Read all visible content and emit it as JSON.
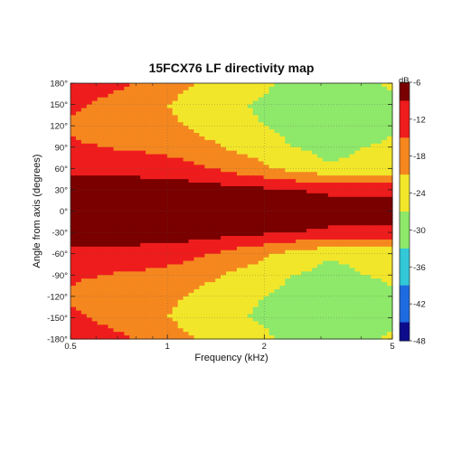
{
  "chart_data": {
    "type": "heatmap",
    "title": "15FCX76 LF directivity map",
    "xlabel": "Frequency (kHz)",
    "ylabel": "Angle from axis (degrees)",
    "x_scale": "log",
    "xlim": [
      0.5,
      5
    ],
    "ylim": [
      -180,
      180
    ],
    "x_ticks": [
      {
        "value": 0.5,
        "label": "0.5"
      },
      {
        "value": 1,
        "label": "1"
      },
      {
        "value": 2,
        "label": "2"
      },
      {
        "value": 5,
        "label": "5"
      }
    ],
    "y_ticks": [
      {
        "value": 180,
        "label": "180°"
      },
      {
        "value": 150,
        "label": "150°"
      },
      {
        "value": 120,
        "label": "120°"
      },
      {
        "value": 90,
        "label": "90°"
      },
      {
        "value": 60,
        "label": "60°"
      },
      {
        "value": 30,
        "label": "30°"
      },
      {
        "value": 0,
        "label": "0°"
      },
      {
        "value": -30,
        "label": "-30°"
      },
      {
        "value": -60,
        "label": "-60°"
      },
      {
        "value": -90,
        "label": "-90°"
      },
      {
        "value": -120,
        "label": "-120°"
      },
      {
        "value": -150,
        "label": "-150°"
      },
      {
        "value": -180,
        "label": "-180°"
      }
    ],
    "colorbar": {
      "unit": "dB",
      "range": [
        -48,
        -6
      ],
      "ticks": [
        {
          "value": -6,
          "label": "-6"
        },
        {
          "value": -12,
          "label": "-12"
        },
        {
          "value": -18,
          "label": "-18"
        },
        {
          "value": -24,
          "label": "-24"
        },
        {
          "value": -30,
          "label": "-30"
        },
        {
          "value": -36,
          "label": "-36"
        },
        {
          "value": -42,
          "label": "-42"
        },
        {
          "value": -48,
          "label": "-48"
        }
      ],
      "colors": [
        "#7a0000",
        "#ee1c1c",
        "#f5871f",
        "#f2e62a",
        "#8ee86a",
        "#32c8d8",
        "#1e6be0",
        "#0c0c8c"
      ]
    },
    "frequencies_khz": [
      0.5,
      0.63,
      0.8,
      1.0,
      1.25,
      1.6,
      2.0,
      2.5,
      3.15,
      4.0,
      5.0
    ],
    "angles_deg": [
      0,
      30,
      60,
      90,
      120,
      150,
      180
    ],
    "levels_db": [
      [
        -6,
        -6,
        -6,
        -6,
        -6,
        -6,
        -6,
        -6,
        -6,
        -6,
        -6
      ],
      [
        -6,
        -6,
        -6,
        -6,
        -6,
        -7,
        -8,
        -9,
        -10,
        -10,
        -10
      ],
      [
        -11,
        -11,
        -11,
        -12,
        -14,
        -17,
        -20,
        -23,
        -26,
        -26,
        -25
      ],
      [
        -14,
        -15,
        -16,
        -17,
        -19,
        -22,
        -24,
        -27,
        -29,
        -27,
        -26
      ],
      [
        -16,
        -18,
        -19,
        -20,
        -22,
        -25,
        -27,
        -30,
        -32,
        -30,
        -28
      ],
      [
        -14,
        -16,
        -18,
        -21,
        -23,
        -26,
        -28,
        -31,
        -33,
        -31,
        -29
      ],
      [
        -10,
        -13,
        -15,
        -19,
        -21,
        -24,
        -26,
        -28,
        -30,
        -28,
        -26
      ]
    ]
  }
}
